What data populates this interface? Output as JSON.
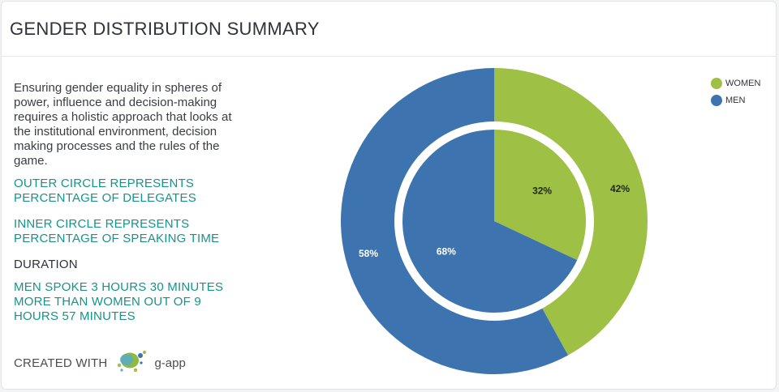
{
  "header": {
    "title": "GENDER DISTRIBUTION SUMMARY"
  },
  "panel": {
    "intro": "Ensuring gender equality in spheres of power, influence and decision-making requires a holistic approach that looks at the institutional environment, decision making processes and the rules of the game.",
    "outer_note": "OUTER CIRCLE REPRESENTS PERCENTAGE OF DELEGATES",
    "inner_note": "INNER CIRCLE REPRESENTS PERCENTAGE OF SPEAKING TIME",
    "duration_label": "DURATION",
    "duration_text": "MEN SPOKE 3 HOURS 30 MINUTES MORE THAN WOMEN OUT OF 9 HOURS 57 MINUTES"
  },
  "footer": {
    "created_with": "CREATED WITH",
    "brand": "g-app",
    "logo_icon": "g-app-logo-icon"
  },
  "colors": {
    "women": "#9ec044",
    "men": "#3d73ae",
    "teal_text": "#16938a"
  },
  "chart_data": {
    "type": "pie",
    "legend_position": "top-right",
    "categories": [
      "WOMEN",
      "MEN"
    ],
    "series": [
      {
        "ring": "outer",
        "values": [
          42,
          58
        ],
        "labels": [
          "42%",
          "58%"
        ]
      },
      {
        "ring": "inner",
        "values": [
          32,
          68
        ],
        "labels": [
          "32%",
          "68%"
        ]
      }
    ]
  }
}
